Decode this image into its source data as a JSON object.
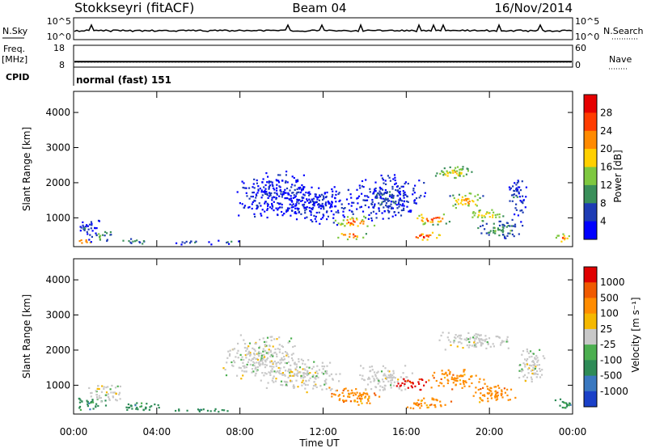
{
  "header": {
    "station": "Stokkseyri (fitACF)",
    "beam": "Beam 04",
    "date": "16/Nov/2014"
  },
  "meta_panel": {
    "nsky_label": "N.Sky",
    "nsearch_label": "N.Search",
    "freq_label": "Freq.",
    "freq_unit": "[MHz]",
    "nave_label": "Nave",
    "cpid_label": "CPID",
    "cpid_value": "normal (fast) 151",
    "noise_ticks": [
      "10^5",
      "10^0"
    ],
    "freq_ticks": [
      "18",
      "8"
    ],
    "nave_ticks": [
      "60",
      "0"
    ],
    "freq_mhz": 10.5,
    "nave_level": 14
  },
  "colors": {
    "power_scale": [
      "#0000ff",
      "#1e3cb4",
      "#3a8f5a",
      "#7ec840",
      "#ffd000",
      "#ff8a00",
      "#ff3c00",
      "#e60000"
    ],
    "velocity_scale": [
      "#1a40c8",
      "#3a78c0",
      "#2e8b57",
      "#4caf50",
      "#c8c8c8",
      "#f5b800",
      "#ff8c00",
      "#f05a00",
      "#e00000"
    ]
  },
  "chart_data": [
    {
      "type": "heatmap",
      "title": "Power",
      "ylabel": "Slant Range [km]",
      "ylim": [
        180,
        4600
      ],
      "yticks": [
        "1000",
        "2000",
        "3000",
        "4000"
      ],
      "xlim": [
        0,
        24
      ],
      "colorbar_label": "Power [dB]",
      "colorbar_ticks": [
        "4",
        "8",
        "12",
        "16",
        "20",
        "24",
        "28"
      ],
      "color_range": [
        0,
        30
      ],
      "blobs": [
        {
          "t": 0.4,
          "r": 350,
          "dt": 0.5,
          "dr": 80,
          "v": 28
        },
        {
          "t": 0.6,
          "r": 750,
          "dt": 0.7,
          "dr": 250,
          "v": 6
        },
        {
          "t": 1.3,
          "r": 500,
          "dt": 0.6,
          "dr": 200,
          "v": 12
        },
        {
          "t": 2.8,
          "r": 350,
          "dt": 0.8,
          "dr": 100,
          "v": 10
        },
        {
          "t": 5.5,
          "r": 320,
          "dt": 1.2,
          "dr": 60,
          "v": 7
        },
        {
          "t": 7.5,
          "r": 330,
          "dt": 0.6,
          "dr": 60,
          "v": 9
        },
        {
          "t": 9.5,
          "r": 1700,
          "dt": 1.8,
          "dr": 700,
          "v": 4
        },
        {
          "t": 11.5,
          "r": 1400,
          "dt": 2.0,
          "dr": 600,
          "v": 4
        },
        {
          "t": 13.5,
          "r": 900,
          "dt": 1.2,
          "dr": 180,
          "v": 24
        },
        {
          "t": 13.3,
          "r": 520,
          "dt": 0.8,
          "dr": 120,
          "v": 28
        },
        {
          "t": 15.0,
          "r": 1600,
          "dt": 2.0,
          "dr": 700,
          "v": 6
        },
        {
          "t": 16.8,
          "r": 500,
          "dt": 1.0,
          "dr": 120,
          "v": 29
        },
        {
          "t": 17.2,
          "r": 1000,
          "dt": 1.0,
          "dr": 200,
          "v": 26
        },
        {
          "t": 18.3,
          "r": 2300,
          "dt": 1.2,
          "dr": 250,
          "v": 18
        },
        {
          "t": 18.8,
          "r": 1500,
          "dt": 1.0,
          "dr": 250,
          "v": 22
        },
        {
          "t": 19.8,
          "r": 1100,
          "dt": 1.0,
          "dr": 200,
          "v": 20
        },
        {
          "t": 20.5,
          "r": 700,
          "dt": 1.2,
          "dr": 300,
          "v": 12
        },
        {
          "t": 21.3,
          "r": 1600,
          "dt": 0.5,
          "dr": 600,
          "v": 6
        },
        {
          "t": 23.5,
          "r": 450,
          "dt": 0.5,
          "dr": 150,
          "v": 24
        }
      ]
    },
    {
      "type": "heatmap",
      "title": "Velocity",
      "ylabel": "Slant Range [km]",
      "xlabel": "Time UT",
      "ylim": [
        180,
        4600
      ],
      "yticks": [
        "1000",
        "2000",
        "3000",
        "4000"
      ],
      "xlim": [
        0,
        24
      ],
      "xticks": [
        "00:00",
        "04:00",
        "08:00",
        "12:00",
        "16:00",
        "20:00",
        "00:00"
      ],
      "colorbar_label": "Velocity [m s⁻¹]",
      "colorbar_ticks": [
        "1000",
        "500",
        "100",
        "25",
        "-25",
        "-100",
        "-500",
        "-1000"
      ],
      "blobs": [
        {
          "t": 0.8,
          "r": 500,
          "dt": 0.9,
          "dr": 200,
          "c": 2
        },
        {
          "t": 1.5,
          "r": 800,
          "dt": 1.0,
          "dr": 300,
          "c": 4
        },
        {
          "t": 3.2,
          "r": 400,
          "dt": 1.2,
          "dr": 150,
          "c": 2
        },
        {
          "t": 6.0,
          "r": 320,
          "dt": 1.8,
          "dr": 60,
          "c": 2
        },
        {
          "t": 9.0,
          "r": 1800,
          "dt": 2.0,
          "dr": 700,
          "c": 4
        },
        {
          "t": 11.0,
          "r": 1300,
          "dt": 2.0,
          "dr": 500,
          "c": 4
        },
        {
          "t": 13.5,
          "r": 700,
          "dt": 1.4,
          "dr": 300,
          "c": 6
        },
        {
          "t": 15.0,
          "r": 1200,
          "dt": 1.5,
          "dr": 400,
          "c": 4
        },
        {
          "t": 16.2,
          "r": 1050,
          "dt": 0.8,
          "dr": 200,
          "c": 8
        },
        {
          "t": 17.0,
          "r": 500,
          "dt": 1.2,
          "dr": 200,
          "c": 6
        },
        {
          "t": 18.3,
          "r": 1200,
          "dt": 1.5,
          "dr": 300,
          "c": 6
        },
        {
          "t": 19.3,
          "r": 2300,
          "dt": 2.0,
          "dr": 300,
          "c": 4
        },
        {
          "t": 20.2,
          "r": 800,
          "dt": 1.2,
          "dr": 300,
          "c": 6
        },
        {
          "t": 22.0,
          "r": 1600,
          "dt": 0.8,
          "dr": 600,
          "c": 4
        },
        {
          "t": 23.6,
          "r": 500,
          "dt": 0.5,
          "dr": 200,
          "c": 2
        }
      ]
    }
  ]
}
